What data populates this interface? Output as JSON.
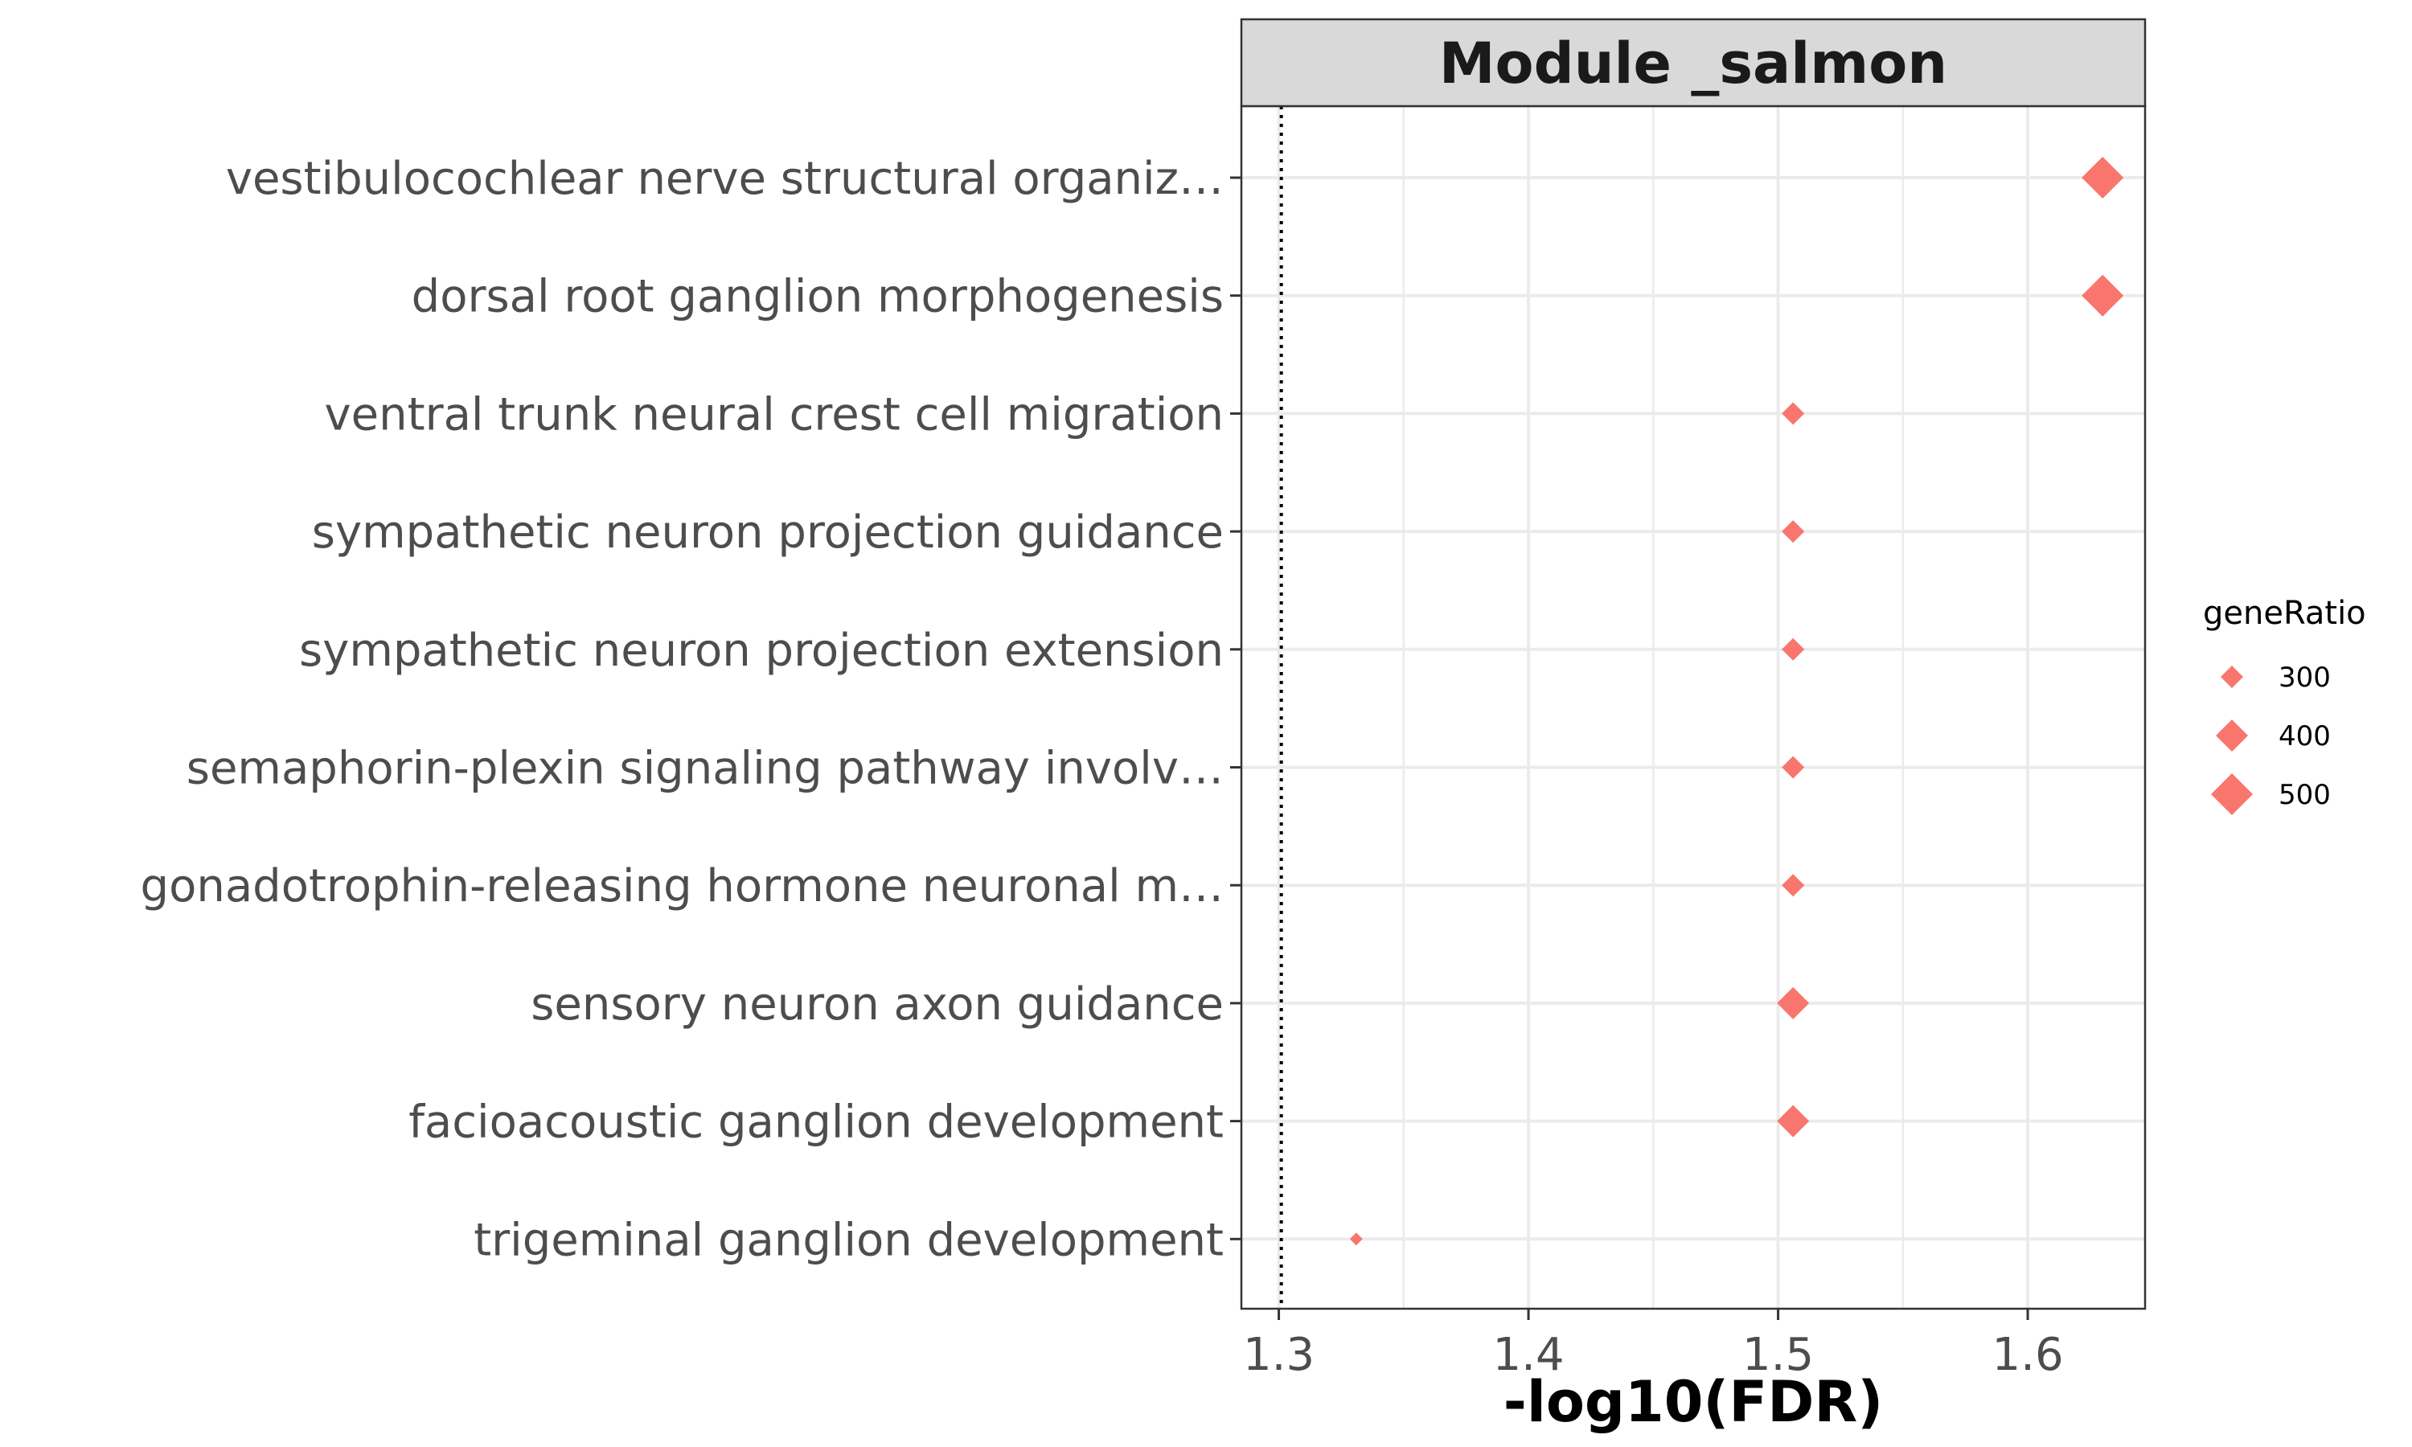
{
  "chart_data": {
    "type": "scatter",
    "panel_title": "Module _salmon",
    "xlabel": "-log10(FDR)",
    "ylabel": "",
    "xlim": [
      1.285,
      1.647
    ],
    "x_ticks": [
      1.3,
      1.4,
      1.5,
      1.6
    ],
    "x_tick_labels": [
      "1.3",
      "1.4",
      "1.5",
      "1.6"
    ],
    "reference_line_x": 1.301,
    "marker": "diamond",
    "color": "#F8766D",
    "grid": true,
    "categories": [
      "vestibulocochlear nerve structural organiz…",
      "dorsal root ganglion morphogenesis",
      "ventral trunk neural crest cell migration",
      "sympathetic neuron projection guidance",
      "sympathetic neuron projection extension",
      "semaphorin-plexin signaling pathway involv…",
      "gonadotrophin-releasing hormone neuronal m…",
      "sensory neuron axon guidance",
      "facioacoustic ganglion development",
      "trigeminal ganglion development"
    ],
    "points": [
      {
        "category": "vestibulocochlear nerve structural organiz…",
        "x": 1.63,
        "geneRatio": 500
      },
      {
        "category": "dorsal root ganglion morphogenesis",
        "x": 1.63,
        "geneRatio": 500
      },
      {
        "category": "ventral trunk neural crest cell migration",
        "x": 1.506,
        "geneRatio": 300
      },
      {
        "category": "sympathetic neuron projection guidance",
        "x": 1.506,
        "geneRatio": 300
      },
      {
        "category": "sympathetic neuron projection extension",
        "x": 1.506,
        "geneRatio": 300
      },
      {
        "category": "semaphorin-plexin signaling pathway involv…",
        "x": 1.506,
        "geneRatio": 300
      },
      {
        "category": "gonadotrophin-releasing hormone neuronal m…",
        "x": 1.506,
        "geneRatio": 300
      },
      {
        "category": "sensory neuron axon guidance",
        "x": 1.506,
        "geneRatio": 400
      },
      {
        "category": "facioacoustic ganglion development",
        "x": 1.506,
        "geneRatio": 400
      },
      {
        "category": "trigeminal ganglion development",
        "x": 1.331,
        "geneRatio": 200
      }
    ],
    "legend": {
      "title": "geneRatio",
      "position": "right",
      "entries": [
        {
          "label": "300",
          "value": 300
        },
        {
          "label": "400",
          "value": 400
        },
        {
          "label": "500",
          "value": 500
        }
      ]
    }
  }
}
